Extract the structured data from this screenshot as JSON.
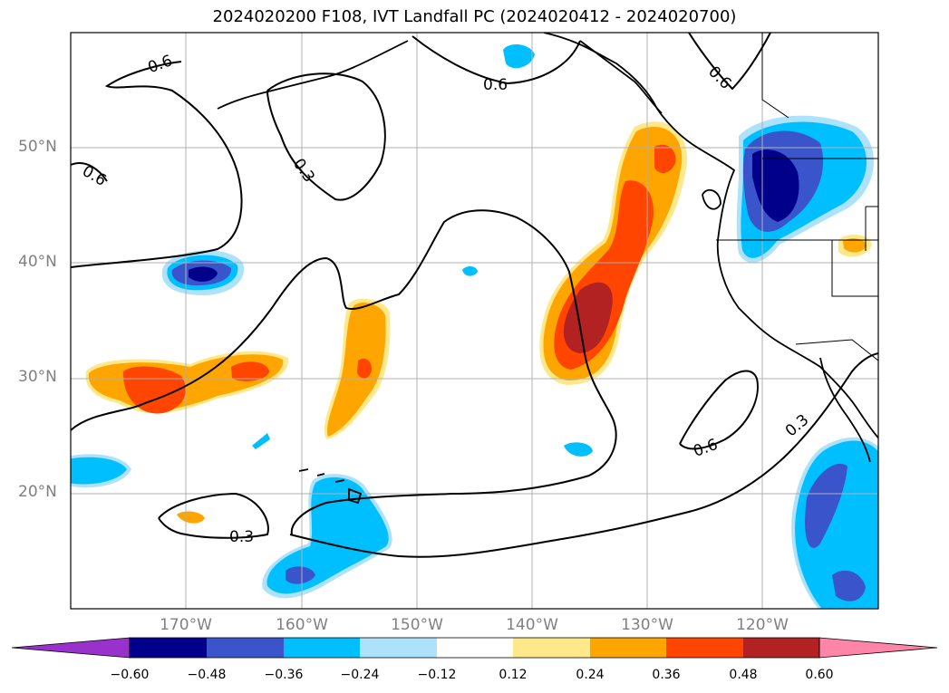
{
  "title": "2024020200 F108, IVT Landfall PC (2024020412 - 2024020700)",
  "lat_labels": [
    "50°N",
    "40°N",
    "30°N",
    "20°N"
  ],
  "lon_labels": [
    "170°W",
    "160°W",
    "150°W",
    "140°W",
    "130°W",
    "120°W"
  ],
  "contour_labels": [
    "0.6",
    "0.6",
    "0.6",
    "0.6",
    "0.3",
    "0.3",
    "0.3",
    "0.6"
  ],
  "colorbar": {
    "tick_labels": [
      "−0.60",
      "−0.48",
      "−0.36",
      "−0.24",
      "−0.12",
      "0.12",
      "0.24",
      "0.36",
      "0.48",
      "0.60"
    ],
    "colors": [
      "#9932CC",
      "#00008B",
      "#3A55CC",
      "#00BFFF",
      "#ADE2FA",
      "#FFFFFF",
      "#FFE88A",
      "#FFA500",
      "#FF4500",
      "#B22222",
      "#FF85A8"
    ]
  }
}
